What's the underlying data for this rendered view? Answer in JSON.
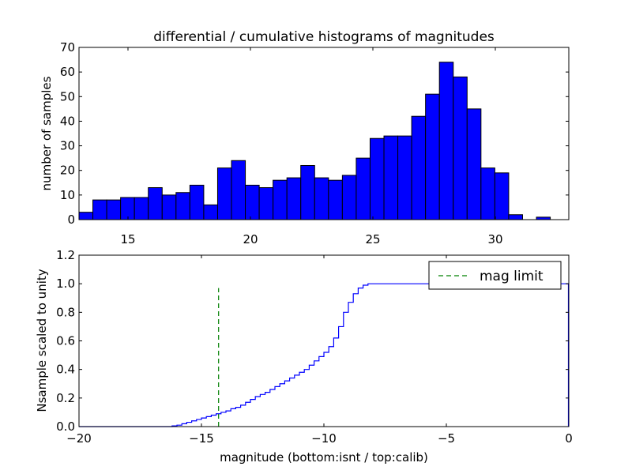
{
  "chart_data": [
    {
      "type": "bar",
      "title": "differential / cumulative histograms of magnitudes",
      "xlabel": "",
      "ylabel": "number of samples",
      "xlim": [
        13.0,
        33.0
      ],
      "ylim": [
        0,
        70
      ],
      "xticks": [
        15,
        20,
        25,
        30
      ],
      "yticks": [
        0,
        10,
        20,
        30,
        40,
        50,
        60,
        70
      ],
      "bin_edges": [
        13.0,
        13.566,
        14.132,
        14.698,
        15.264,
        15.83,
        16.396,
        16.962,
        17.528,
        18.094,
        18.66,
        19.226,
        19.792,
        20.358,
        20.924,
        21.49,
        22.056,
        22.622,
        23.188,
        23.754,
        24.32,
        24.886,
        25.452,
        26.018,
        26.584,
        27.15,
        27.716,
        28.282,
        28.848,
        29.414,
        29.98,
        30.546,
        31.112,
        31.678,
        32.244,
        32.81
      ],
      "values": [
        3,
        8,
        8,
        9,
        9,
        13,
        10,
        11,
        14,
        6,
        21,
        24,
        14,
        13,
        16,
        17,
        22,
        17,
        16,
        18,
        25,
        33,
        34,
        34,
        42,
        51,
        64,
        58,
        45,
        21,
        19,
        2,
        0,
        1,
        0
      ],
      "color": "#0000ff"
    },
    {
      "type": "line",
      "title": "",
      "xlabel": "magnitude (bottom:isnt / top:calib)",
      "ylabel": "Nsample scaled to unity",
      "xlim": [
        -20,
        0
      ],
      "ylim": [
        0.0,
        1.2
      ],
      "xticks": [
        -20,
        -15,
        -10,
        -5,
        0
      ],
      "yticks": [
        0.0,
        0.2,
        0.4,
        0.6,
        0.8,
        1.0,
        1.2
      ],
      "ytick_labels": [
        "0.0",
        "0.2",
        "0.4",
        "0.6",
        "0.8",
        "1.0",
        "1.2"
      ],
      "series": [
        {
          "name": "cumulative",
          "style": "steps",
          "color": "#0000ff",
          "x": [
            -20.0,
            -16.2,
            -16.0,
            -15.8,
            -15.6,
            -15.4,
            -15.2,
            -15.0,
            -14.8,
            -14.6,
            -14.4,
            -14.2,
            -14.0,
            -13.8,
            -13.6,
            -13.4,
            -13.2,
            -13.0,
            -12.8,
            -12.6,
            -12.4,
            -12.2,
            -12.0,
            -11.8,
            -11.6,
            -11.4,
            -11.2,
            -11.0,
            -10.8,
            -10.6,
            -10.4,
            -10.2,
            -10.0,
            -9.8,
            -9.6,
            -9.4,
            -9.2,
            -9.0,
            -8.8,
            -8.6,
            -8.4,
            -8.2,
            -8.0,
            -7.8,
            -0.05,
            -0.02
          ],
          "y": [
            0.0,
            0.005,
            0.01,
            0.02,
            0.03,
            0.04,
            0.05,
            0.06,
            0.07,
            0.08,
            0.09,
            0.1,
            0.11,
            0.125,
            0.135,
            0.15,
            0.17,
            0.19,
            0.21,
            0.225,
            0.24,
            0.26,
            0.28,
            0.3,
            0.32,
            0.34,
            0.36,
            0.38,
            0.4,
            0.43,
            0.46,
            0.49,
            0.52,
            0.56,
            0.62,
            0.7,
            0.8,
            0.87,
            0.93,
            0.97,
            0.99,
            1.0,
            1.0,
            1.0,
            1.0,
            1.0
          ]
        },
        {
          "name": "mag limit",
          "style": "dashed",
          "color": "#008000",
          "x": [
            -14.3,
            -14.3
          ],
          "y": [
            0.0,
            0.97
          ]
        }
      ],
      "legend": {
        "entries": [
          "mag limit"
        ],
        "placement": "top-right"
      }
    }
  ]
}
